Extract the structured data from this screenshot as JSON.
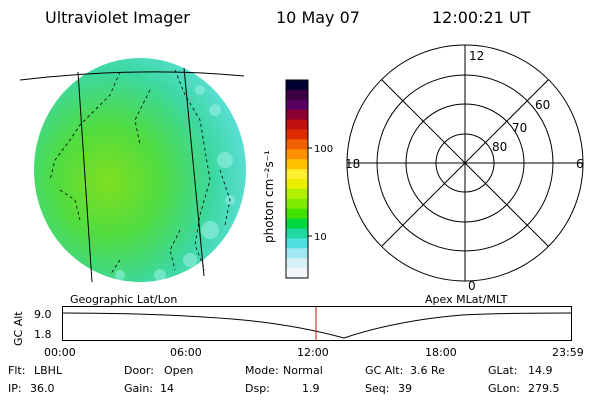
{
  "header": {
    "title": "Ultraviolet Imager",
    "date": "10 May 07",
    "time": "12:00:21 UT"
  },
  "image_panel": {
    "caption": "Geographic Lat/Lon"
  },
  "colorbar": {
    "unit_label": "photon cm⁻²s⁻¹",
    "scale": "log",
    "ticks": [
      "100",
      "10"
    ],
    "colors": [
      "#000033",
      "#3a0040",
      "#5a0060",
      "#8a0030",
      "#c01010",
      "#e02a00",
      "#f06000",
      "#ff9000",
      "#ffc000",
      "#ffef30",
      "#e8f000",
      "#b0f000",
      "#80ea00",
      "#40e000",
      "#00d840",
      "#20d8a0",
      "#50e0e0",
      "#a0e8f0",
      "#d8f0f4",
      "#f2f6f8"
    ]
  },
  "polar_plot": {
    "caption": "Apex MLat/MLT",
    "mlt_labels": [
      "12",
      "18",
      "6",
      "0"
    ],
    "lat_labels": [
      "60",
      "70",
      "80"
    ]
  },
  "altitude_strip": {
    "ylabel": "GC Alt",
    "y_ticks": [
      "9.0",
      "1.8"
    ],
    "x_ticks": [
      "00:00",
      "06:00",
      "12:00",
      "18:00",
      "23:59"
    ],
    "current_marker_time": "12:00"
  },
  "status": {
    "row1": [
      {
        "label": "Flt:",
        "value": "LBHL"
      },
      {
        "label": "Door:",
        "value": "Open"
      },
      {
        "label": "Mode:",
        "value": "Normal"
      },
      {
        "label": "GC Alt:",
        "value": "3.6 Re"
      },
      {
        "label": "GLat:",
        "value": "14.9"
      }
    ],
    "row2": [
      {
        "label": "IP:",
        "value": "36.0"
      },
      {
        "label": "Gain:",
        "value": "14"
      },
      {
        "label": "Dsp:",
        "value": "1.9"
      },
      {
        "label": "Seq:",
        "value": "39"
      },
      {
        "label": "GLon:",
        "value": "279.5"
      }
    ]
  }
}
